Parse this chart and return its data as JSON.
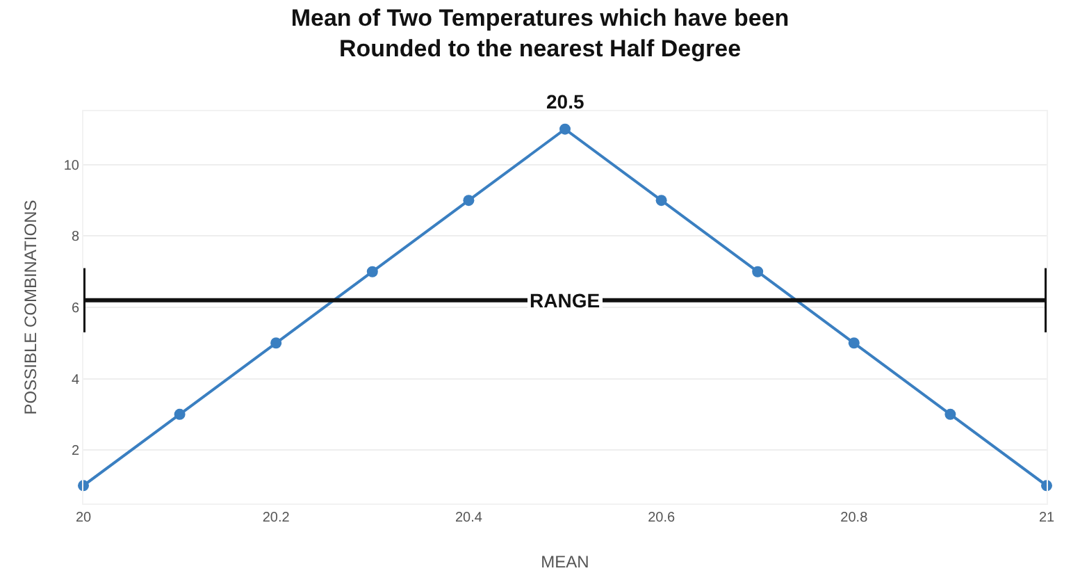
{
  "chart_data": {
    "type": "line",
    "title": "Mean of Two Temperatures which have been\nRounded to the nearest Half Degree",
    "xlabel": "MEAN",
    "ylabel": "POSSIBLE COMBINATIONS",
    "x": [
      20,
      20.1,
      20.2,
      20.3,
      20.4,
      20.5,
      20.6,
      20.7,
      20.8,
      20.9,
      21
    ],
    "series": [
      {
        "color": "#3a7fc1",
        "values": [
          1,
          3,
          5,
          7,
          9,
          11,
          9,
          7,
          5,
          3,
          1
        ]
      },
      {
        "color": "#111111",
        "x": [
          20,
          21
        ],
        "values": [
          6.2,
          6.2
        ],
        "errors": [
          0.9,
          0.9
        ],
        "marker": "none"
      }
    ],
    "xlim": [
      20,
      21
    ],
    "ylim": [
      0.5,
      11.5
    ],
    "xticks": [
      20,
      20.2,
      20.4,
      20.6,
      20.8,
      21
    ],
    "yticks": [
      2,
      4,
      6,
      8,
      10
    ],
    "grid": "y",
    "marker": "circle",
    "line_style": "solid",
    "annotations": [
      {
        "text": "20.5",
        "x": 20.5,
        "y": 11
      },
      {
        "text": "RANGE",
        "x": 20.5,
        "y": 6.2
      }
    ]
  }
}
